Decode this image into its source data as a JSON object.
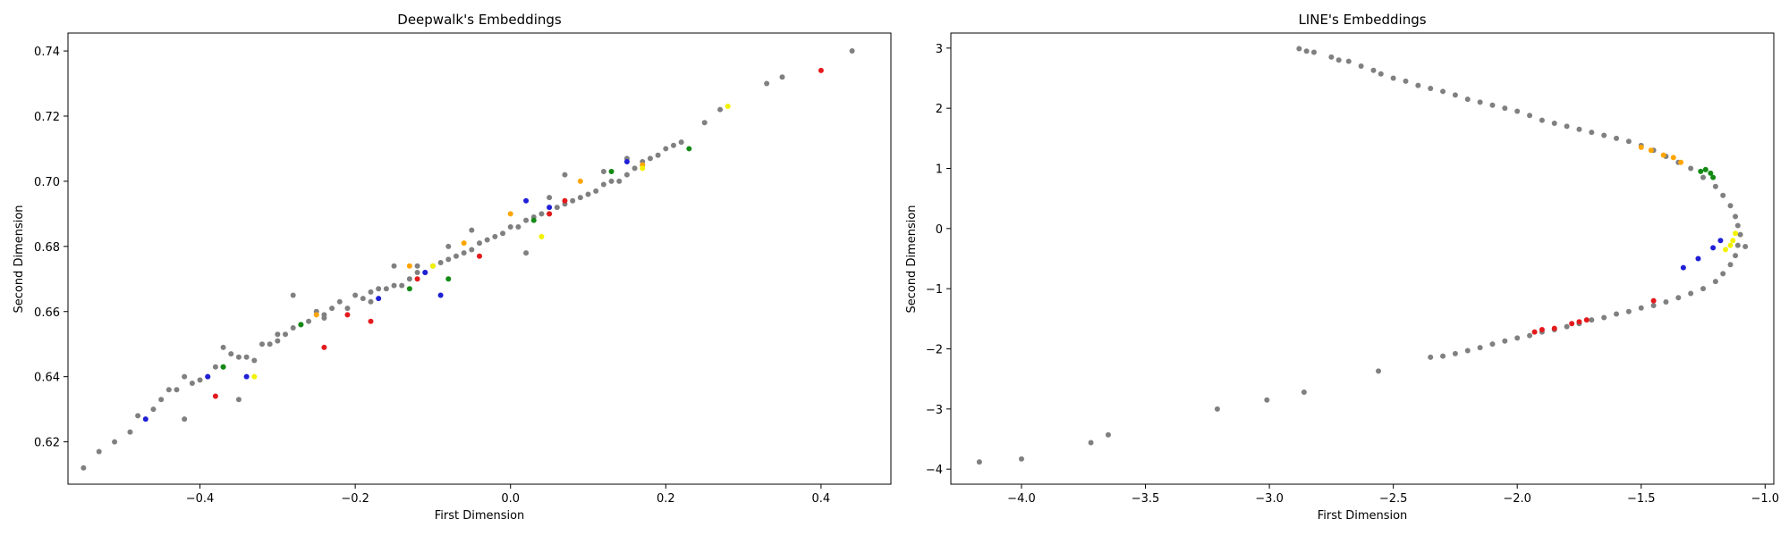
{
  "chart_data": [
    {
      "type": "scatter",
      "title": "Deepwalk's Embeddings",
      "xlabel": "First Dimension",
      "ylabel": "Second Dimension",
      "xlim": [
        -0.57,
        0.49
      ],
      "ylim": [
        0.607,
        0.7455
      ],
      "xticks": [
        -0.4,
        -0.2,
        0.0,
        0.2,
        0.4
      ],
      "xtick_labels": [
        "−0.4",
        "−0.2",
        "0.0",
        "0.2",
        "0.4"
      ],
      "yticks": [
        0.62,
        0.64,
        0.66,
        0.68,
        0.7,
        0.72,
        0.74
      ],
      "ytick_labels": [
        "0.62",
        "0.64",
        "0.66",
        "0.68",
        "0.70",
        "0.72",
        "0.74"
      ],
      "grid": false,
      "colors": {
        "gray": "#808080",
        "red": "#e41a1c",
        "blue": "#1f1fd6",
        "green": "#138a13",
        "orange": "#ffa500",
        "yellow": "#f2f200"
      },
      "series": [
        {
          "color": "gray",
          "x": [
            -0.55,
            -0.53,
            -0.51,
            -0.49,
            -0.48,
            -0.46,
            -0.45,
            -0.44,
            -0.43,
            -0.42,
            -0.41,
            -0.4,
            -0.39,
            -0.38,
            -0.37,
            -0.36,
            -0.35,
            -0.34,
            -0.33,
            -0.32,
            -0.31,
            -0.3,
            -0.29,
            -0.28,
            -0.27,
            -0.26,
            -0.25,
            -0.24,
            -0.23,
            -0.22,
            -0.21,
            -0.2,
            -0.19,
            -0.18,
            -0.17,
            -0.16,
            -0.15,
            -0.14,
            -0.13,
            -0.12,
            -0.11,
            -0.1,
            -0.09,
            -0.08,
            -0.07,
            -0.06,
            -0.05,
            -0.04,
            -0.03,
            -0.02,
            -0.01,
            0.0,
            0.01,
            0.02,
            0.03,
            0.04,
            0.05,
            0.06,
            0.07,
            0.08,
            0.09,
            0.1,
            0.11,
            0.12,
            0.13,
            0.14,
            0.15,
            0.16,
            0.17,
            0.18,
            0.19,
            0.2,
            0.21,
            0.22,
            0.25,
            0.27,
            0.33,
            0.35,
            0.44,
            -0.35,
            -0.28,
            -0.15,
            -0.05,
            0.05,
            0.15,
            -0.42,
            -0.3,
            -0.18,
            -0.08,
            0.02,
            0.12,
            -0.37,
            -0.24,
            -0.12,
            0.07
          ],
          "y": [
            0.612,
            0.617,
            0.62,
            0.623,
            0.628,
            0.63,
            0.633,
            0.636,
            0.636,
            0.64,
            0.638,
            0.639,
            0.64,
            0.643,
            0.643,
            0.647,
            0.646,
            0.646,
            0.645,
            0.65,
            0.65,
            0.653,
            0.653,
            0.655,
            0.656,
            0.657,
            0.66,
            0.659,
            0.661,
            0.663,
            0.661,
            0.665,
            0.664,
            0.666,
            0.667,
            0.667,
            0.668,
            0.668,
            0.67,
            0.672,
            0.672,
            0.674,
            0.675,
            0.676,
            0.677,
            0.678,
            0.679,
            0.681,
            0.682,
            0.683,
            0.684,
            0.686,
            0.686,
            0.688,
            0.689,
            0.69,
            0.69,
            0.692,
            0.693,
            0.694,
            0.695,
            0.696,
            0.697,
            0.699,
            0.7,
            0.7,
            0.702,
            0.704,
            0.706,
            0.707,
            0.708,
            0.71,
            0.711,
            0.712,
            0.718,
            0.722,
            0.73,
            0.732,
            0.74,
            0.633,
            0.665,
            0.674,
            0.685,
            0.695,
            0.707,
            0.627,
            0.651,
            0.663,
            0.68,
            0.678,
            0.703,
            0.649,
            0.658,
            0.674,
            0.702
          ]
        },
        {
          "color": "red",
          "x": [
            -0.38,
            -0.24,
            -0.21,
            -0.18,
            -0.12,
            -0.04,
            0.05,
            0.07,
            0.4
          ],
          "y": [
            0.634,
            0.649,
            0.659,
            0.657,
            0.67,
            0.677,
            0.69,
            0.694,
            0.734
          ]
        },
        {
          "color": "blue",
          "x": [
            -0.47,
            -0.39,
            -0.34,
            -0.17,
            -0.11,
            -0.09,
            0.02,
            0.05,
            0.15
          ],
          "y": [
            0.627,
            0.64,
            0.64,
            0.664,
            0.672,
            0.665,
            0.694,
            0.692,
            0.706
          ]
        },
        {
          "color": "green",
          "x": [
            -0.37,
            -0.27,
            -0.13,
            -0.08,
            0.03,
            0.13,
            0.23
          ],
          "y": [
            0.643,
            0.656,
            0.667,
            0.67,
            0.688,
            0.703,
            0.71
          ]
        },
        {
          "color": "orange",
          "x": [
            -0.25,
            -0.13,
            -0.06,
            0.0,
            0.09,
            0.17
          ],
          "y": [
            0.659,
            0.674,
            0.681,
            0.69,
            0.7,
            0.705
          ]
        },
        {
          "color": "yellow",
          "x": [
            -0.33,
            -0.1,
            0.04,
            0.17,
            0.28
          ],
          "y": [
            0.64,
            0.674,
            0.683,
            0.704,
            0.723
          ]
        }
      ]
    },
    {
      "type": "scatter",
      "title": "LINE's Embeddings",
      "xlabel": "First Dimension",
      "ylabel": "Second Dimension",
      "xlim": [
        -4.285,
        -0.965
      ],
      "ylim": [
        -4.25,
        3.25
      ],
      "xticks": [
        -4.0,
        -3.5,
        -3.0,
        -2.5,
        -2.0,
        -1.5,
        -1.0
      ],
      "xtick_labels": [
        "−4.0",
        "−3.5",
        "−3.0",
        "−2.5",
        "−2.0",
        "−1.5",
        "−1.0"
      ],
      "yticks": [
        -4,
        -3,
        -2,
        -1,
        0,
        1,
        2,
        3
      ],
      "ytick_labels": [
        "−4",
        "−3",
        "−2",
        "−1",
        "0",
        "1",
        "2",
        "3"
      ],
      "grid": false,
      "colors": {
        "gray": "#808080",
        "red": "#e41a1c",
        "blue": "#1f1fd6",
        "green": "#138a13",
        "orange": "#ffa500",
        "yellow": "#f2f200"
      },
      "series": [
        {
          "color": "gray",
          "x": [
            -2.88,
            -2.85,
            -2.82,
            -2.75,
            -2.72,
            -2.68,
            -2.63,
            -2.58,
            -2.55,
            -2.5,
            -2.45,
            -2.4,
            -2.35,
            -2.3,
            -2.25,
            -2.2,
            -2.15,
            -2.1,
            -2.05,
            -2.0,
            -1.95,
            -1.9,
            -1.85,
            -1.8,
            -1.75,
            -1.7,
            -1.65,
            -1.6,
            -1.55,
            -1.5,
            -1.45,
            -1.4,
            -1.35,
            -1.3,
            -1.25,
            -1.2,
            -1.17,
            -1.14,
            -1.12,
            -1.11,
            -1.1,
            -1.11,
            -1.12,
            -1.14,
            -1.17,
            -1.2,
            -1.25,
            -1.3,
            -1.35,
            -1.4,
            -1.45,
            -1.5,
            -1.55,
            -1.6,
            -1.65,
            -1.7,
            -1.75,
            -1.8,
            -1.85,
            -1.9,
            -1.95,
            -2.0,
            -2.05,
            -2.1,
            -2.15,
            -2.2,
            -2.25,
            -2.3,
            -2.35,
            -2.56,
            -2.86,
            -3.01,
            -3.21,
            -3.65,
            -3.72,
            -4.0,
            -4.17,
            -1.08
          ],
          "y": [
            2.99,
            2.95,
            2.93,
            2.85,
            2.8,
            2.78,
            2.7,
            2.63,
            2.57,
            2.5,
            2.45,
            2.38,
            2.33,
            2.28,
            2.22,
            2.15,
            2.1,
            2.05,
            2.0,
            1.95,
            1.88,
            1.8,
            1.75,
            1.7,
            1.65,
            1.6,
            1.55,
            1.5,
            1.45,
            1.38,
            1.3,
            1.2,
            1.1,
            1.0,
            0.85,
            0.7,
            0.55,
            0.38,
            0.2,
            0.05,
            -0.1,
            -0.28,
            -0.45,
            -0.6,
            -0.75,
            -0.88,
            -1.0,
            -1.08,
            -1.15,
            -1.22,
            -1.28,
            -1.32,
            -1.38,
            -1.42,
            -1.48,
            -1.52,
            -1.58,
            -1.63,
            -1.68,
            -1.72,
            -1.78,
            -1.82,
            -1.87,
            -1.92,
            -1.98,
            -2.03,
            -2.08,
            -2.12,
            -2.14,
            -2.37,
            -2.72,
            -2.85,
            -3.0,
            -3.43,
            -3.56,
            -3.83,
            -3.88,
            -0.3
          ]
        },
        {
          "color": "red",
          "x": [
            -1.93,
            -1.9,
            -1.85,
            -1.78,
            -1.75,
            -1.72,
            -1.45
          ],
          "y": [
            -1.72,
            -1.68,
            -1.66,
            -1.58,
            -1.55,
            -1.52,
            -1.2
          ]
        },
        {
          "color": "blue",
          "x": [
            -1.33,
            -1.27,
            -1.21,
            -1.18
          ],
          "y": [
            -0.65,
            -0.5,
            -0.32,
            -0.2
          ]
        },
        {
          "color": "green",
          "x": [
            -1.26,
            -1.24,
            -1.22,
            -1.21
          ],
          "y": [
            0.95,
            0.98,
            0.92,
            0.85
          ]
        },
        {
          "color": "orange",
          "x": [
            -1.5,
            -1.46,
            -1.41,
            -1.37,
            -1.34
          ],
          "y": [
            1.35,
            1.3,
            1.22,
            1.18,
            1.1
          ]
        },
        {
          "color": "yellow",
          "x": [
            -1.16,
            -1.14,
            -1.13,
            -1.12
          ],
          "y": [
            -0.35,
            -0.28,
            -0.2,
            -0.08
          ]
        }
      ]
    }
  ]
}
